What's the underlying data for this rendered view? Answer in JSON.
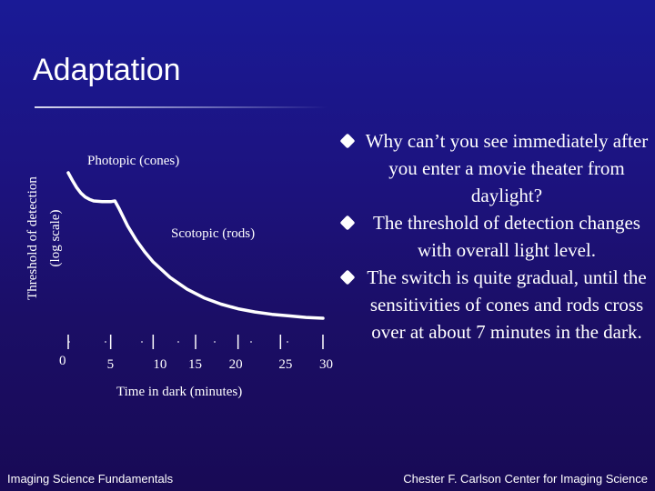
{
  "slide": {
    "title": "Adaptation",
    "footer_left": "Imaging Science Fundamentals",
    "footer_right": "Chester F. Carlson Center for Imaging Science",
    "bullets": [
      "Why can’t you see immediately after you enter a movie theater from daylight?",
      "The threshold of detection changes with overall light level.",
      "The switch is quite gradual, until the sensitivities of cones and rods cross over at about 7 minutes in the dark."
    ]
  },
  "colors": {
    "background_top": "#1a1a96",
    "background_bottom": "#180a55",
    "text": "#ffffff",
    "curve": "#ffffff"
  },
  "chart_data": {
    "type": "line",
    "ylabel_line1": "Threshold of detection",
    "ylabel_line2": "(log scale)",
    "xlabel": "Time in dark (minutes)",
    "x_tick_labels": [
      "0",
      "5",
      "10",
      "15",
      "20",
      "25",
      "30"
    ],
    "xlim": [
      0,
      30
    ],
    "annotations": {
      "photopic": "Photopic (cones)",
      "scotopic": "Scotopic (rods)"
    },
    "curve": {
      "x": [
        0,
        0.5,
        1,
        1.5,
        2,
        2.5,
        3,
        4,
        5,
        5.5,
        6,
        7,
        8,
        9,
        10,
        12,
        14,
        16,
        18,
        20,
        22,
        24,
        26,
        28,
        30
      ],
      "y": [
        10,
        9.5,
        9.05,
        8.7,
        8.45,
        8.3,
        8.2,
        8.15,
        8.15,
        8.2,
        7.7,
        6.6,
        5.7,
        4.95,
        4.3,
        3.3,
        2.55,
        2.0,
        1.6,
        1.3,
        1.1,
        0.95,
        0.85,
        0.75,
        0.7
      ]
    },
    "grid": false,
    "legend": "none"
  }
}
